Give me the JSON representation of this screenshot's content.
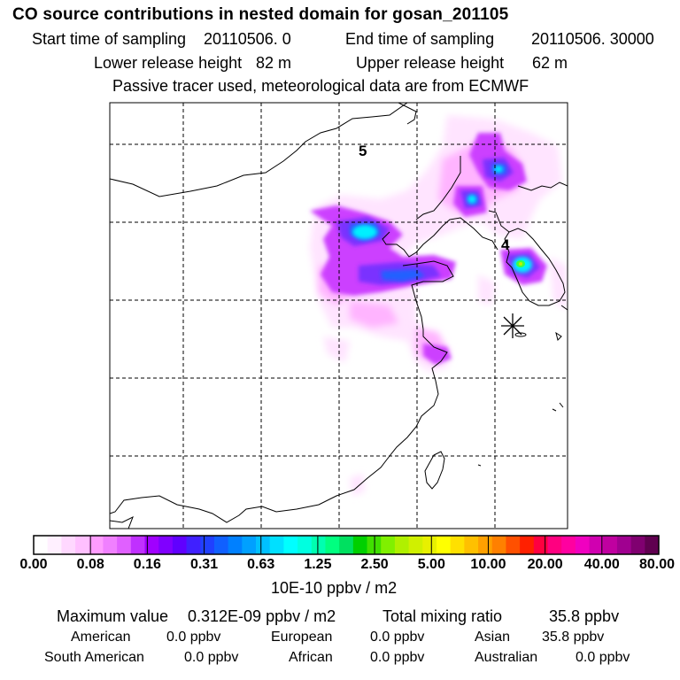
{
  "title": "CO  source contributions in nested domain for gosan_201105",
  "header": {
    "start_label": "Start time of sampling",
    "start_value": "20110506.     0",
    "end_label": "End time of sampling",
    "end_value": "20110506. 30000",
    "lower_label": "Lower release height",
    "lower_value": "82 m",
    "upper_label": "Upper release height",
    "upper_value": "62 m",
    "note": "Passive tracer used, meteorological data are from ECMWF"
  },
  "map": {
    "label_5": "5",
    "label_4": "4",
    "receptor_icon": "asterisk-receptor-icon"
  },
  "colorbar": {
    "ticks": [
      "0.00",
      "0.08",
      "0.16",
      "0.31",
      "0.63",
      "1.25",
      "2.50",
      "5.00",
      "10.00",
      "20.00",
      "40.00",
      "80.00"
    ],
    "unit": "10E-10 ppbv / m2",
    "colors": [
      "#ffffff",
      "#fff0ff",
      "#ffd8ff",
      "#ffc0ff",
      "#ff9cff",
      "#f080ff",
      "#e060ff",
      "#c030ff",
      "#a000ff",
      "#8000ff",
      "#6000ff",
      "#4020ff",
      "#2040ff",
      "#1060ff",
      "#0080ff",
      "#00a0ff",
      "#00c0ff",
      "#00e0ff",
      "#00ffff",
      "#00ffe0",
      "#00ffb0",
      "#00ff80",
      "#00e060",
      "#00d000",
      "#40e000",
      "#80f000",
      "#b0f000",
      "#d0f000",
      "#e8f000",
      "#ffff00",
      "#ffe000",
      "#ffc000",
      "#ffa000",
      "#ff8000",
      "#ff5000",
      "#ff2000",
      "#ff0040",
      "#ff0080",
      "#ff00a0",
      "#f000c0",
      "#d000b0",
      "#c000a0",
      "#a00090",
      "#800070",
      "#600050"
    ]
  },
  "summary": {
    "max_label": "Maximum value",
    "max_value": "0.312E-09 ppbv / m2",
    "total_label": "Total mixing ratio",
    "total_value": "35.8 ppbv",
    "regions": [
      {
        "name": "American",
        "value": "0.0 ppbv"
      },
      {
        "name": "European",
        "value": "0.0 ppbv"
      },
      {
        "name": "Asian",
        "value": "35.8 ppbv"
      },
      {
        "name": "South American",
        "value": "0.0 ppbv"
      },
      {
        "name": "African",
        "value": "0.0 ppbv"
      },
      {
        "name": "Australian",
        "value": "0.0 ppbv"
      }
    ]
  }
}
